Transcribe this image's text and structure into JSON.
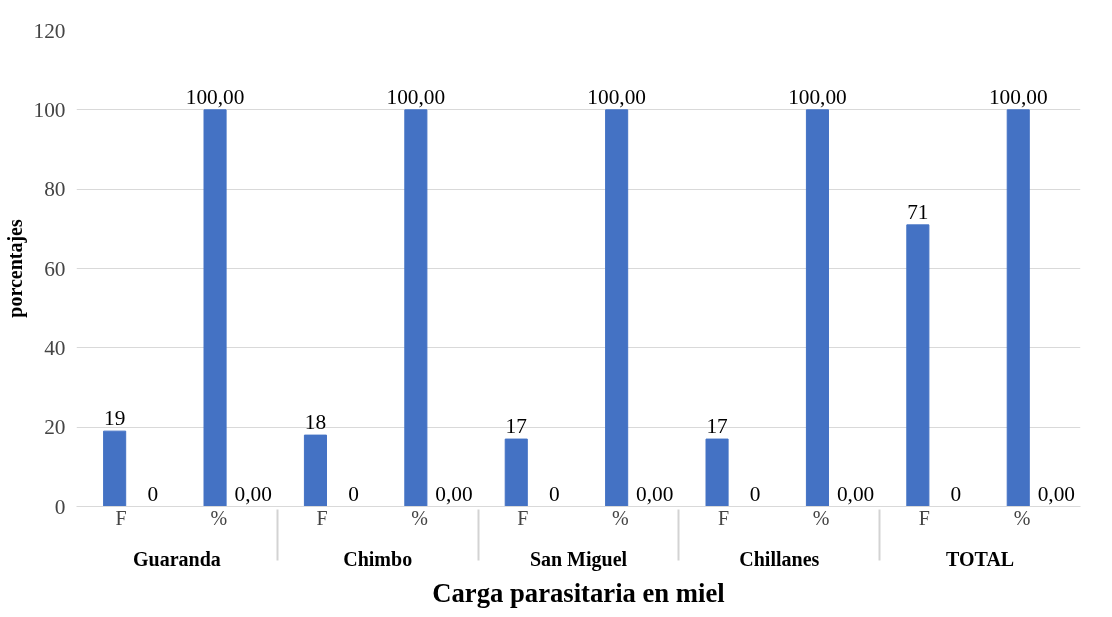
{
  "chart_data": {
    "type": "bar",
    "xlabel": "Carga parasitaria en miel",
    "ylabel": "porcentajes",
    "categories": [
      "F",
      "%",
      "F",
      "%",
      "F",
      "%",
      "F",
      "%",
      "F",
      "%"
    ],
    "annotations": [
      "Guaranda",
      "Chimbo",
      "San Miguel",
      "Chillanes",
      "TOTAL"
    ],
    "series": [
      {
        "color": "#4472c4",
        "values": [
          19,
          100,
          18,
          100,
          17,
          100,
          17,
          100,
          71,
          100
        ],
        "value_labels": [
          "19",
          "100,00",
          "18",
          "100,00",
          "17",
          "100,00",
          "17",
          "100,00",
          "71",
          "100,00"
        ]
      },
      {
        "color": "#ed7d31",
        "values": [
          0,
          0,
          0,
          0,
          0,
          0,
          0,
          0,
          0,
          0
        ],
        "value_labels": [
          "0",
          "0,00",
          "0",
          "0,00",
          "0",
          "0,00",
          "0",
          "0,00",
          "0",
          "0,00"
        ]
      }
    ],
    "ylim": [
      0,
      120
    ],
    "yticks": [
      0,
      20,
      40,
      60,
      80,
      100,
      120
    ],
    "grid": "y"
  }
}
